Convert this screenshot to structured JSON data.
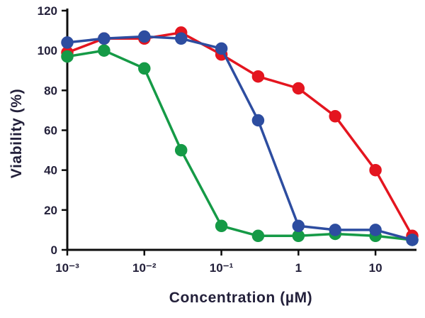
{
  "chart_data": {
    "type": "line",
    "xlabel": "Concentration (µM)",
    "ylabel": "Viability (%)",
    "x_scale": "log",
    "xlim": [
      0.001,
      30
    ],
    "ylim": [
      0,
      120
    ],
    "x": [
      0.001,
      0.003,
      0.01,
      0.03,
      0.1,
      0.3,
      1,
      3,
      10,
      30
    ],
    "x_ticks": [
      0.001,
      0.01,
      0.1,
      1,
      10
    ],
    "x_tick_labels": [
      "10⁻³",
      "10⁻²",
      "10⁻¹",
      "1",
      "10"
    ],
    "y_ticks": [
      0,
      20,
      40,
      60,
      80,
      100,
      120
    ],
    "grid": false,
    "legend": "none",
    "series": [
      {
        "name": "red",
        "color": "#e4151f",
        "values": [
          99,
          106,
          106,
          109,
          98,
          87,
          81,
          67,
          40,
          7
        ]
      },
      {
        "name": "green",
        "color": "#159a46",
        "values": [
          97,
          100,
          91,
          50,
          12,
          7,
          7,
          8,
          7,
          5
        ]
      },
      {
        "name": "blue",
        "color": "#2d4da0",
        "values": [
          104,
          106,
          107,
          106,
          101,
          65,
          12,
          10,
          10,
          5
        ]
      }
    ]
  },
  "colors": {
    "text": "#23203a",
    "axis": "#0d0d0d",
    "background": "#ffffff"
  }
}
